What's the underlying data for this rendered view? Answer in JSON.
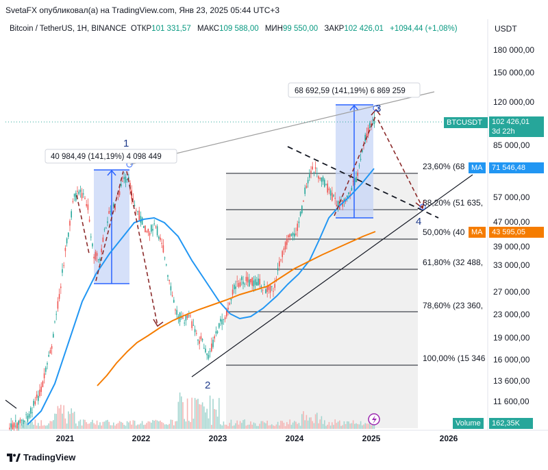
{
  "header": {
    "published_line": "SvetaFX опубликовал(а) на TradingView.com, Янв 23, 2025 05:44 UTC+3",
    "symbol_title": "Bitcoin / TetherUS, 1H, BINANCE",
    "ohlc": [
      {
        "label": "ОТКР",
        "value": "101 331,57"
      },
      {
        "label": "МАКС",
        "value": "109 588,00"
      },
      {
        "label": "МИН",
        "value": "99 550,00"
      },
      {
        "label": "ЗАКР",
        "value": "102 426,01"
      }
    ],
    "change": "+1094,44 (+1,08%)",
    "currency": "USDT"
  },
  "chart_data": {
    "type": "candlestick",
    "scale": "log",
    "y_ticks": [
      "180 000,00",
      "150 000,00",
      "120 000,00",
      "85 000,00",
      "57 000,00",
      "47 000,00",
      "39 000,00",
      "33 000,00",
      "27 000,00",
      "23 000,00",
      "19 000,00",
      "16 000,00",
      "13 600,00",
      "11 600,00"
    ],
    "x_ticks": [
      "2021",
      "2022",
      "2023",
      "2024",
      "2025",
      "2026"
    ],
    "price_tags": {
      "btcusdt_label": "BTCUSDT",
      "btcusdt_price": "102 426,01",
      "btcusdt_countdown": "3d 22h",
      "ma1_label": "MA",
      "ma1_value": "71 546,48",
      "ma2_label": "MA",
      "ma2_value": "43 595,05",
      "volume_label": "Volume",
      "volume_value": "162,35K"
    },
    "fib_levels": [
      {
        "label": "23,60% (68"
      },
      {
        "label": "38,20% (51 635,"
      },
      {
        "label": "50,00% (40"
      },
      {
        "label": "61,80% (32 488,"
      },
      {
        "label": "78,60% (23 360,"
      },
      {
        "label": "100,00% (15 346"
      }
    ],
    "measure_boxes": [
      {
        "label": "40 984,49 (141,19%) 4 098 449"
      },
      {
        "label": "68 692,59 (141,19%) 6 869 259"
      }
    ],
    "wave_labels": [
      "1",
      "2",
      "3",
      "4"
    ],
    "series": [
      {
        "name": "MA",
        "color": "#2196f3"
      },
      {
        "name": "MA",
        "color": "#f57c00"
      }
    ]
  },
  "footer": {
    "brand": "TradingView"
  }
}
